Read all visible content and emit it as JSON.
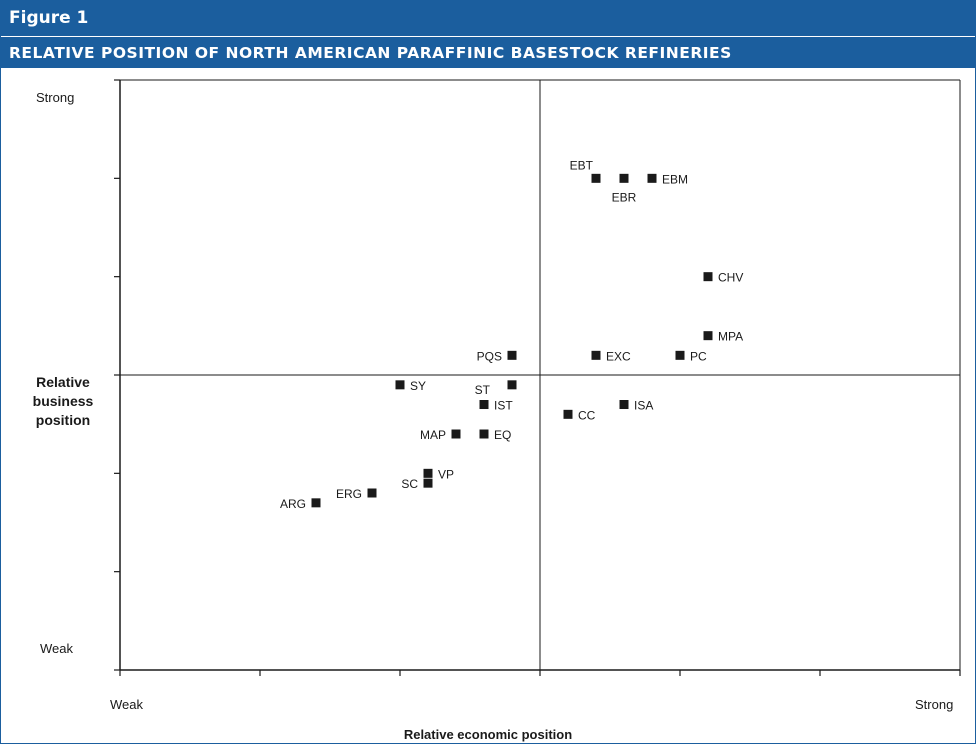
{
  "figure": {
    "number": "Figure 1",
    "title": "RELATIVE POSITION OF NORTH AMERICAN PARAFFINIC BASESTOCK REFINERIES"
  },
  "colors": {
    "header_bg": "#1b5e9e",
    "header_text": "#ffffff",
    "marker": "#1a1a1a",
    "axis": "#1a1a1a"
  },
  "chart_data": {
    "type": "scatter",
    "title": "RELATIVE POSITION OF NORTH AMERICAN PARAFFINIC BASESTOCK REFINERIES",
    "xlabel": "Relative economic position",
    "ylabel": "Relative business position",
    "x_weak_label": "Weak",
    "x_strong_label": "Strong",
    "y_weak_label": "Weak",
    "y_strong_label": "Strong",
    "xlim": [
      0,
      12
    ],
    "ylim": [
      0,
      6
    ],
    "x_ticks": [
      0,
      2,
      4,
      6,
      8,
      10,
      12
    ],
    "y_ticks": [
      0,
      1,
      2,
      3,
      4,
      5,
      6
    ],
    "quadrant_lines": {
      "x": 6,
      "y": 3
    },
    "grid": false,
    "points": [
      {
        "label": "EBT",
        "x": 6.8,
        "y": 5.0,
        "label_pos": "above-left"
      },
      {
        "label": "EBR",
        "x": 7.2,
        "y": 5.0,
        "label_pos": "below"
      },
      {
        "label": "EBM",
        "x": 7.6,
        "y": 5.0,
        "label_pos": "right"
      },
      {
        "label": "CHV",
        "x": 8.4,
        "y": 4.0,
        "label_pos": "right"
      },
      {
        "label": "MPA",
        "x": 8.4,
        "y": 3.4,
        "label_pos": "right"
      },
      {
        "label": "PC",
        "x": 8.0,
        "y": 3.2,
        "label_pos": "right"
      },
      {
        "label": "EXC",
        "x": 6.8,
        "y": 3.2,
        "label_pos": "right"
      },
      {
        "label": "PQS",
        "x": 5.6,
        "y": 3.2,
        "label_pos": "left"
      },
      {
        "label": "SY",
        "x": 4.0,
        "y": 2.9,
        "label_pos": "right"
      },
      {
        "label": "ST",
        "x": 5.6,
        "y": 2.9,
        "label_pos": "left-below"
      },
      {
        "label": "IST",
        "x": 5.2,
        "y": 2.7,
        "label_pos": "right"
      },
      {
        "label": "CC",
        "x": 6.4,
        "y": 2.6,
        "label_pos": "right"
      },
      {
        "label": "ISA",
        "x": 7.2,
        "y": 2.7,
        "label_pos": "right"
      },
      {
        "label": "MAP",
        "x": 4.8,
        "y": 2.4,
        "label_pos": "left"
      },
      {
        "label": "EQ",
        "x": 5.2,
        "y": 2.4,
        "label_pos": "right"
      },
      {
        "label": "VP",
        "x": 4.4,
        "y": 2.0,
        "label_pos": "right"
      },
      {
        "label": "SC",
        "x": 4.4,
        "y": 1.9,
        "label_pos": "left"
      },
      {
        "label": "ERG",
        "x": 3.6,
        "y": 1.8,
        "label_pos": "left"
      },
      {
        "label": "ARG",
        "x": 2.8,
        "y": 1.7,
        "label_pos": "left"
      }
    ]
  }
}
